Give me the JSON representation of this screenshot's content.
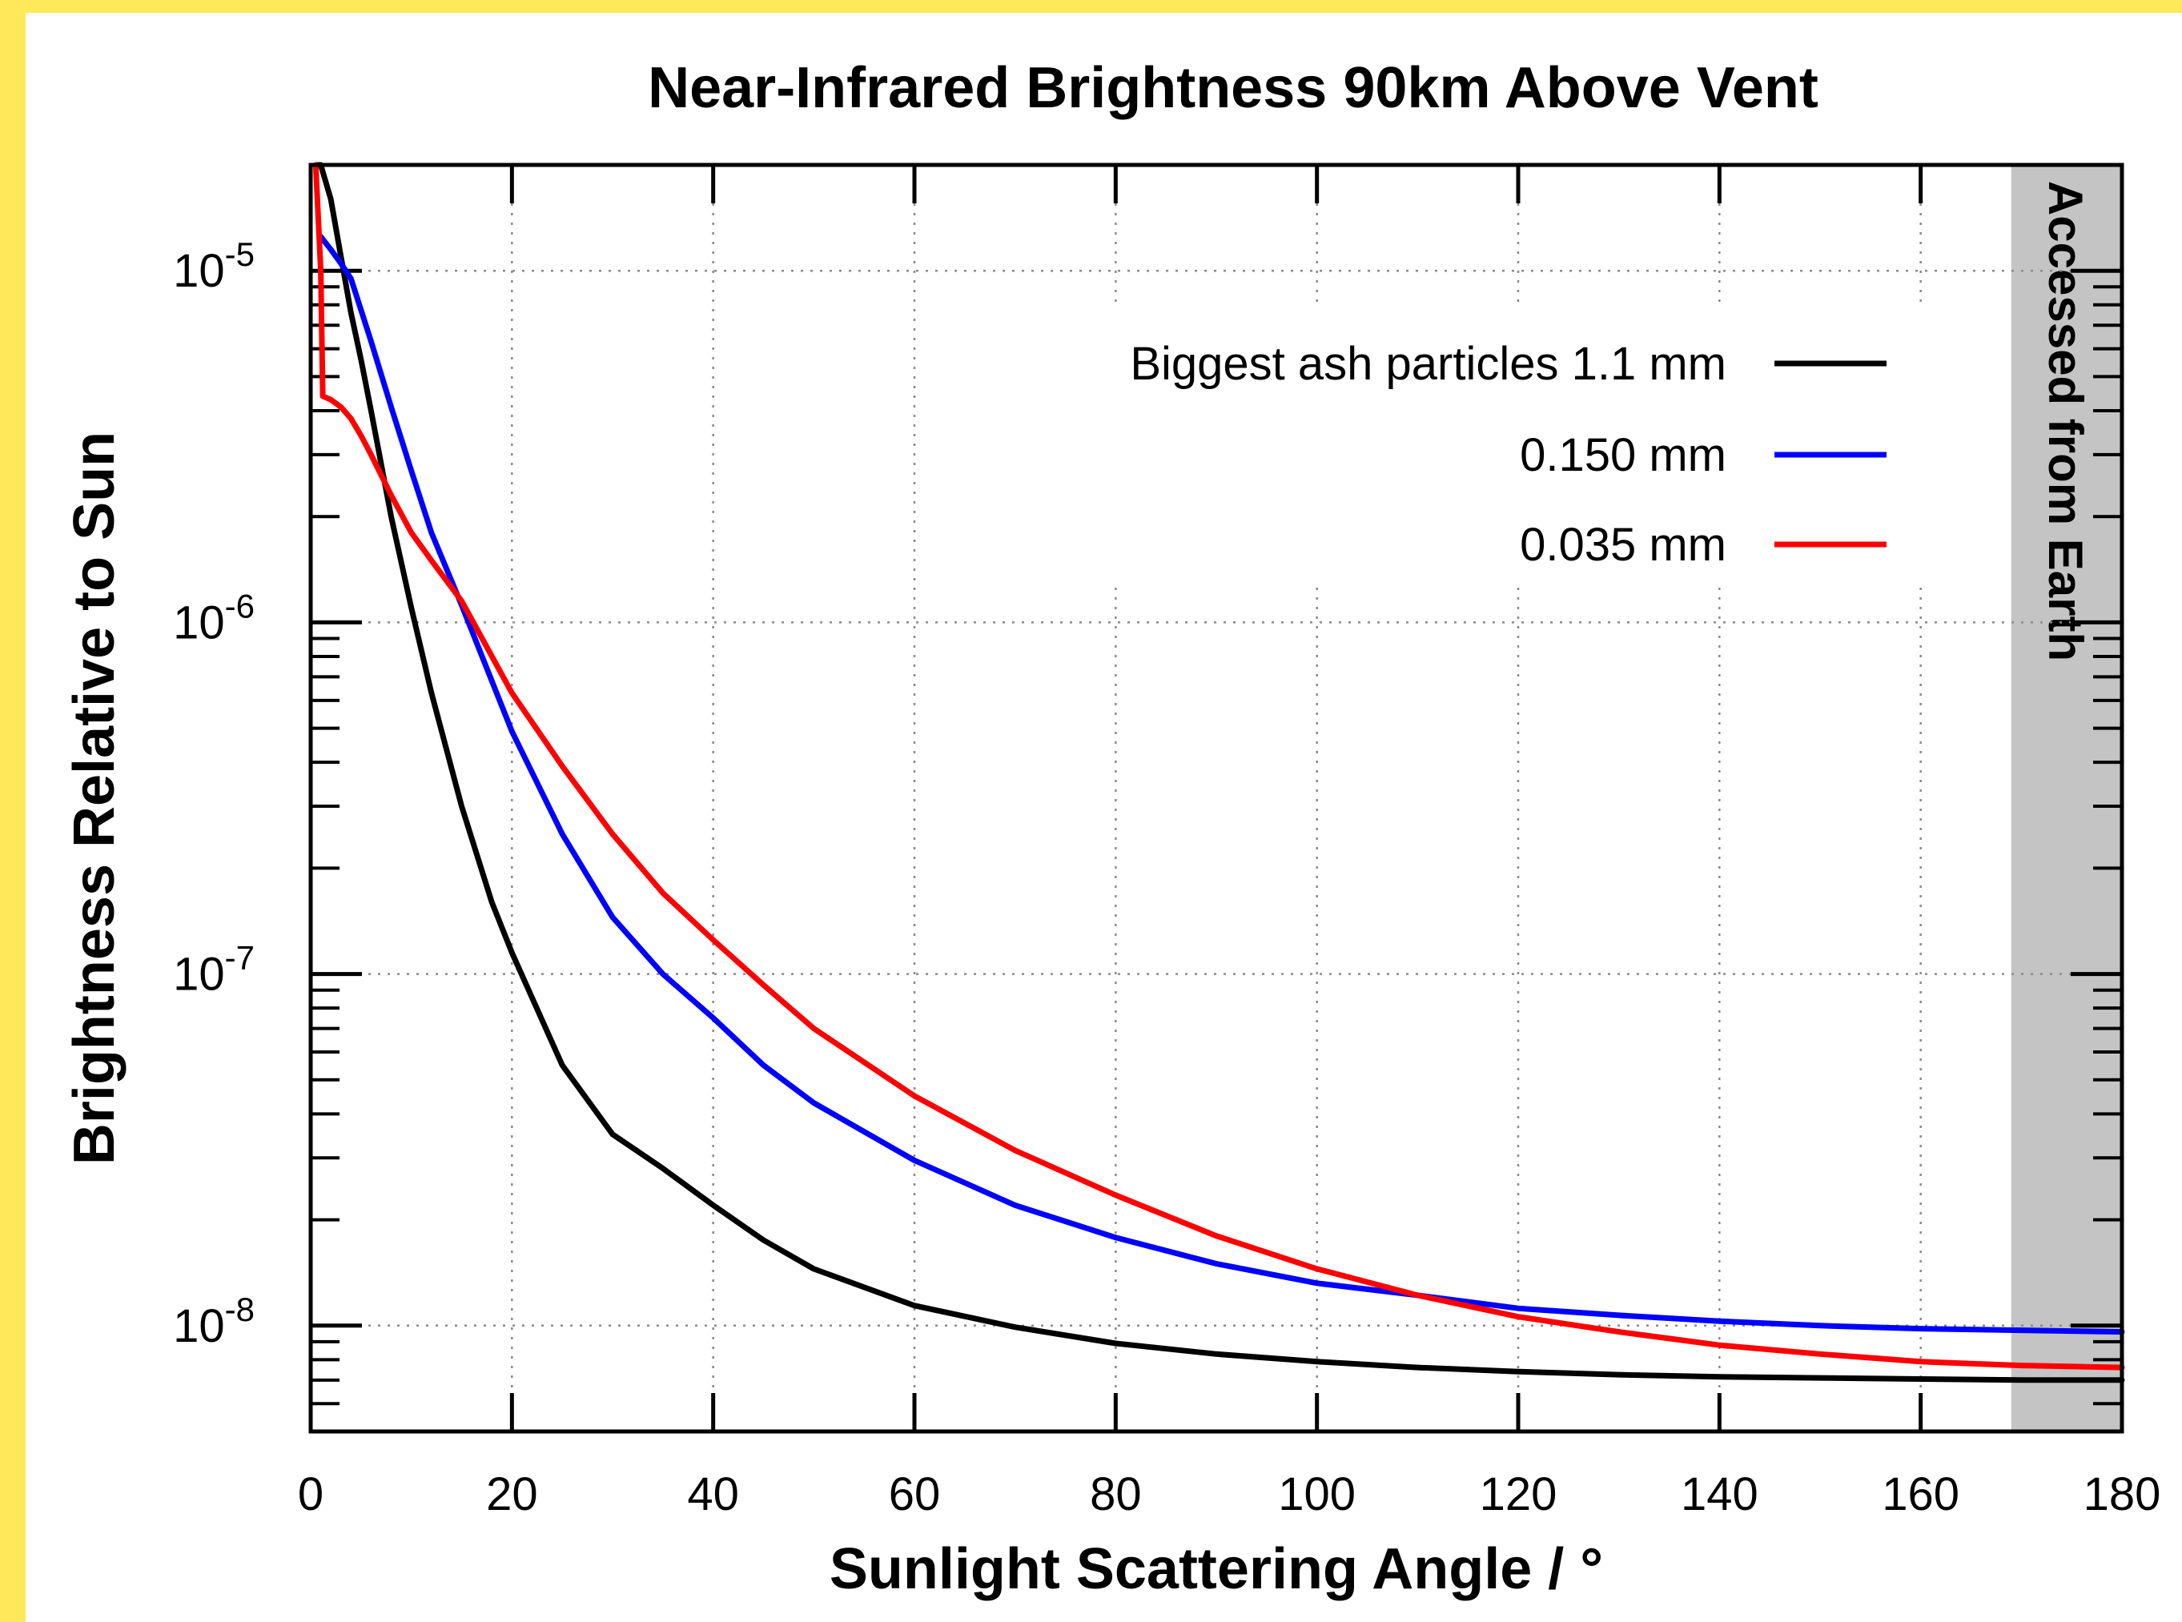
{
  "chart_data": {
    "type": "line",
    "title": "Near-Infrared Brightness 90km Above Vent",
    "xlabel": "Sunlight Scattering Angle / °",
    "ylabel": "Brightness Relative to Sun",
    "xlim": [
      0,
      180
    ],
    "ylim": [
      5e-09,
      2e-05
    ],
    "y_scale": "log",
    "x_ticks": [
      "0",
      "20",
      "40",
      "60",
      "80",
      "100",
      "120",
      "140",
      "160",
      "180"
    ],
    "y_ticks": [
      {
        "base": "10",
        "exp": "-5",
        "value": 1e-05
      },
      {
        "base": "10",
        "exp": "-6",
        "value": 1e-06
      },
      {
        "base": "10",
        "exp": "-7",
        "value": 1e-07
      },
      {
        "base": "10",
        "exp": "-8",
        "value": 1e-08
      }
    ],
    "grid": true,
    "legend_position": "top-right",
    "shaded_region": {
      "x_start": 169,
      "x_end": 180,
      "label": "Accessed from Earth",
      "color": "#c4c4c4"
    },
    "series": [
      {
        "name": "Biggest ash particles 1.1 mm",
        "color": "#000000",
        "x": [
          0.5,
          1,
          2,
          3,
          4,
          5,
          6,
          8,
          10,
          12,
          15,
          18,
          20,
          25,
          30,
          35,
          40,
          45,
          50,
          60,
          70,
          80,
          90,
          100,
          110,
          120,
          130,
          140,
          150,
          160,
          170,
          180
        ],
        "y": [
          3e-05,
          2.2e-05,
          1.6e-05,
          1.1e-05,
          7.6e-06,
          5.6e-06,
          4e-06,
          2e-06,
          1.1e-06,
          6.3e-07,
          3e-07,
          1.6e-07,
          1.15e-07,
          5.5e-08,
          3.5e-08,
          2.8e-08,
          2.2e-08,
          1.75e-08,
          1.45e-08,
          1.14e-08,
          9.9e-09,
          8.9e-09,
          8.3e-09,
          7.9e-09,
          7.6e-09,
          7.4e-09,
          7.25e-09,
          7.15e-09,
          7.1e-09,
          7.05e-09,
          7e-09,
          7e-09
        ]
      },
      {
        "name": "0.150 mm",
        "color": "#0000ff",
        "x": [
          1,
          2,
          3,
          4,
          6,
          8,
          10,
          12,
          15,
          20,
          25,
          30,
          35,
          40,
          45,
          50,
          60,
          70,
          80,
          90,
          100,
          110,
          120,
          130,
          140,
          150,
          160,
          170,
          180
        ],
        "y": [
          1.25e-05,
          1.15e-05,
          1.05e-05,
          9.5e-06,
          6.3e-06,
          4.1e-06,
          2.7e-06,
          1.8e-06,
          1.12e-06,
          4.9e-07,
          2.5e-07,
          1.45e-07,
          1e-07,
          7.5e-08,
          5.5e-08,
          4.3e-08,
          2.95e-08,
          2.2e-08,
          1.78e-08,
          1.5e-08,
          1.32e-08,
          1.22e-08,
          1.12e-08,
          1.07e-08,
          1.03e-08,
          1e-08,
          9.8e-09,
          9.7e-09,
          9.6e-09
        ]
      },
      {
        "name": "0.035 mm",
        "color": "#ff0000",
        "x": [
          0.5,
          1,
          1.2,
          2,
          3,
          4,
          5,
          6,
          8,
          10,
          12,
          15,
          20,
          25,
          30,
          35,
          40,
          45,
          50,
          60,
          70,
          80,
          90,
          100,
          110,
          120,
          130,
          140,
          150,
          160,
          170,
          180
        ],
        "y": [
          2e-05,
          1e-05,
          4.4e-06,
          4.3e-06,
          4.1e-06,
          3.8e-06,
          3.4e-06,
          3e-06,
          2.3e-06,
          1.8e-06,
          1.5e-06,
          1.15e-06,
          6.3e-07,
          3.9e-07,
          2.5e-07,
          1.7e-07,
          1.25e-07,
          9.3e-08,
          7e-08,
          4.5e-08,
          3.15e-08,
          2.35e-08,
          1.8e-08,
          1.45e-08,
          1.22e-08,
          1.06e-08,
          9.6e-09,
          8.8e-09,
          8.3e-09,
          7.9e-09,
          7.7e-09,
          7.6e-09
        ]
      }
    ]
  }
}
